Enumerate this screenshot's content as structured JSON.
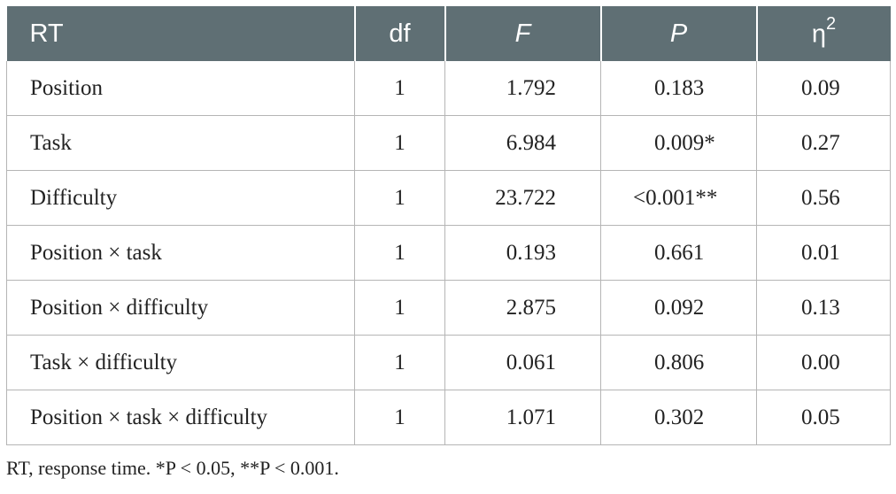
{
  "table": {
    "headers": {
      "col1": "RT",
      "col2": "df",
      "col3": "F",
      "col4": "P",
      "col5_base": "η",
      "col5_sup": "2"
    },
    "rows": [
      {
        "term": "Position",
        "df": "1",
        "F": "1.792",
        "P": "0.183",
        "eta2": "0.09"
      },
      {
        "term": "Task",
        "df": "1",
        "F": "6.984",
        "P": "0.009*",
        "eta2": "0.27"
      },
      {
        "term": "Difficulty",
        "df": "1",
        "F": "23.722",
        "P": "<0.001**",
        "eta2": "0.56"
      },
      {
        "term": "Position × task",
        "df": "1",
        "F": "0.193",
        "P": "0.661",
        "eta2": "0.01"
      },
      {
        "term": "Position × difficulty",
        "df": "1",
        "F": "2.875",
        "P": "0.092",
        "eta2": "0.13"
      },
      {
        "term": "Task × difficulty",
        "df": "1",
        "F": "0.061",
        "P": "0.806",
        "eta2": "0.00"
      },
      {
        "term": "Position × task × difficulty",
        "df": "1",
        "F": "1.071",
        "P": "0.302",
        "eta2": "0.05"
      }
    ]
  },
  "footnote": "RT, response time. *P < 0.05, **P < 0.001.",
  "colors": {
    "header_bg": "#5f6f74",
    "header_text": "#ffffff",
    "border": "#b5b5b5",
    "body_text": "#222222"
  }
}
